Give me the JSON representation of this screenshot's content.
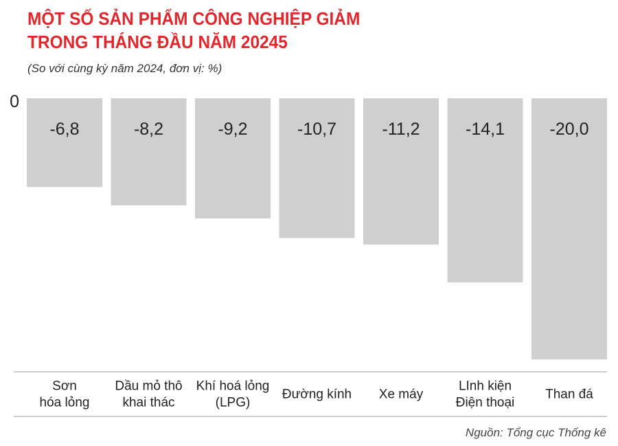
{
  "title_line1": "MỘT SỐ SẢN PHẨM CÔNG NGHIỆP GIẢM",
  "title_line2": "TRONG THÁNG ĐẦU NĂM 20245",
  "subtitle": "(So với cùng kỳ năm 2024, đơn vị: %)",
  "source": "Nguồn: Tổng cục Thống kê",
  "colors": {
    "title": "#e3262b",
    "bar": "#cfcfcf",
    "text": "#222222",
    "axis": "#bdbdbd"
  },
  "chart_data": {
    "type": "bar",
    "categories": [
      [
        "Sơn",
        "hóa lỏng"
      ],
      [
        "Dầu mỏ thô",
        "khai thác"
      ],
      [
        "Khí hoá lỏng",
        "(LPG)"
      ],
      [
        "Đường kính"
      ],
      [
        "Xe máy"
      ],
      [
        "LInh kiện",
        "Điện thoại"
      ],
      [
        "Than đá"
      ]
    ],
    "values": [
      -6.8,
      -8.2,
      -9.2,
      -10.7,
      -11.2,
      -14.1,
      -20.0
    ],
    "value_labels": [
      "-6,8",
      "-8,2",
      "-9,2",
      "-10,7",
      "-11,2",
      "-14,1",
      "-20,0"
    ],
    "y_tick_label": "0",
    "ylim": [
      -20,
      0
    ],
    "grid": false,
    "legend": "none"
  }
}
